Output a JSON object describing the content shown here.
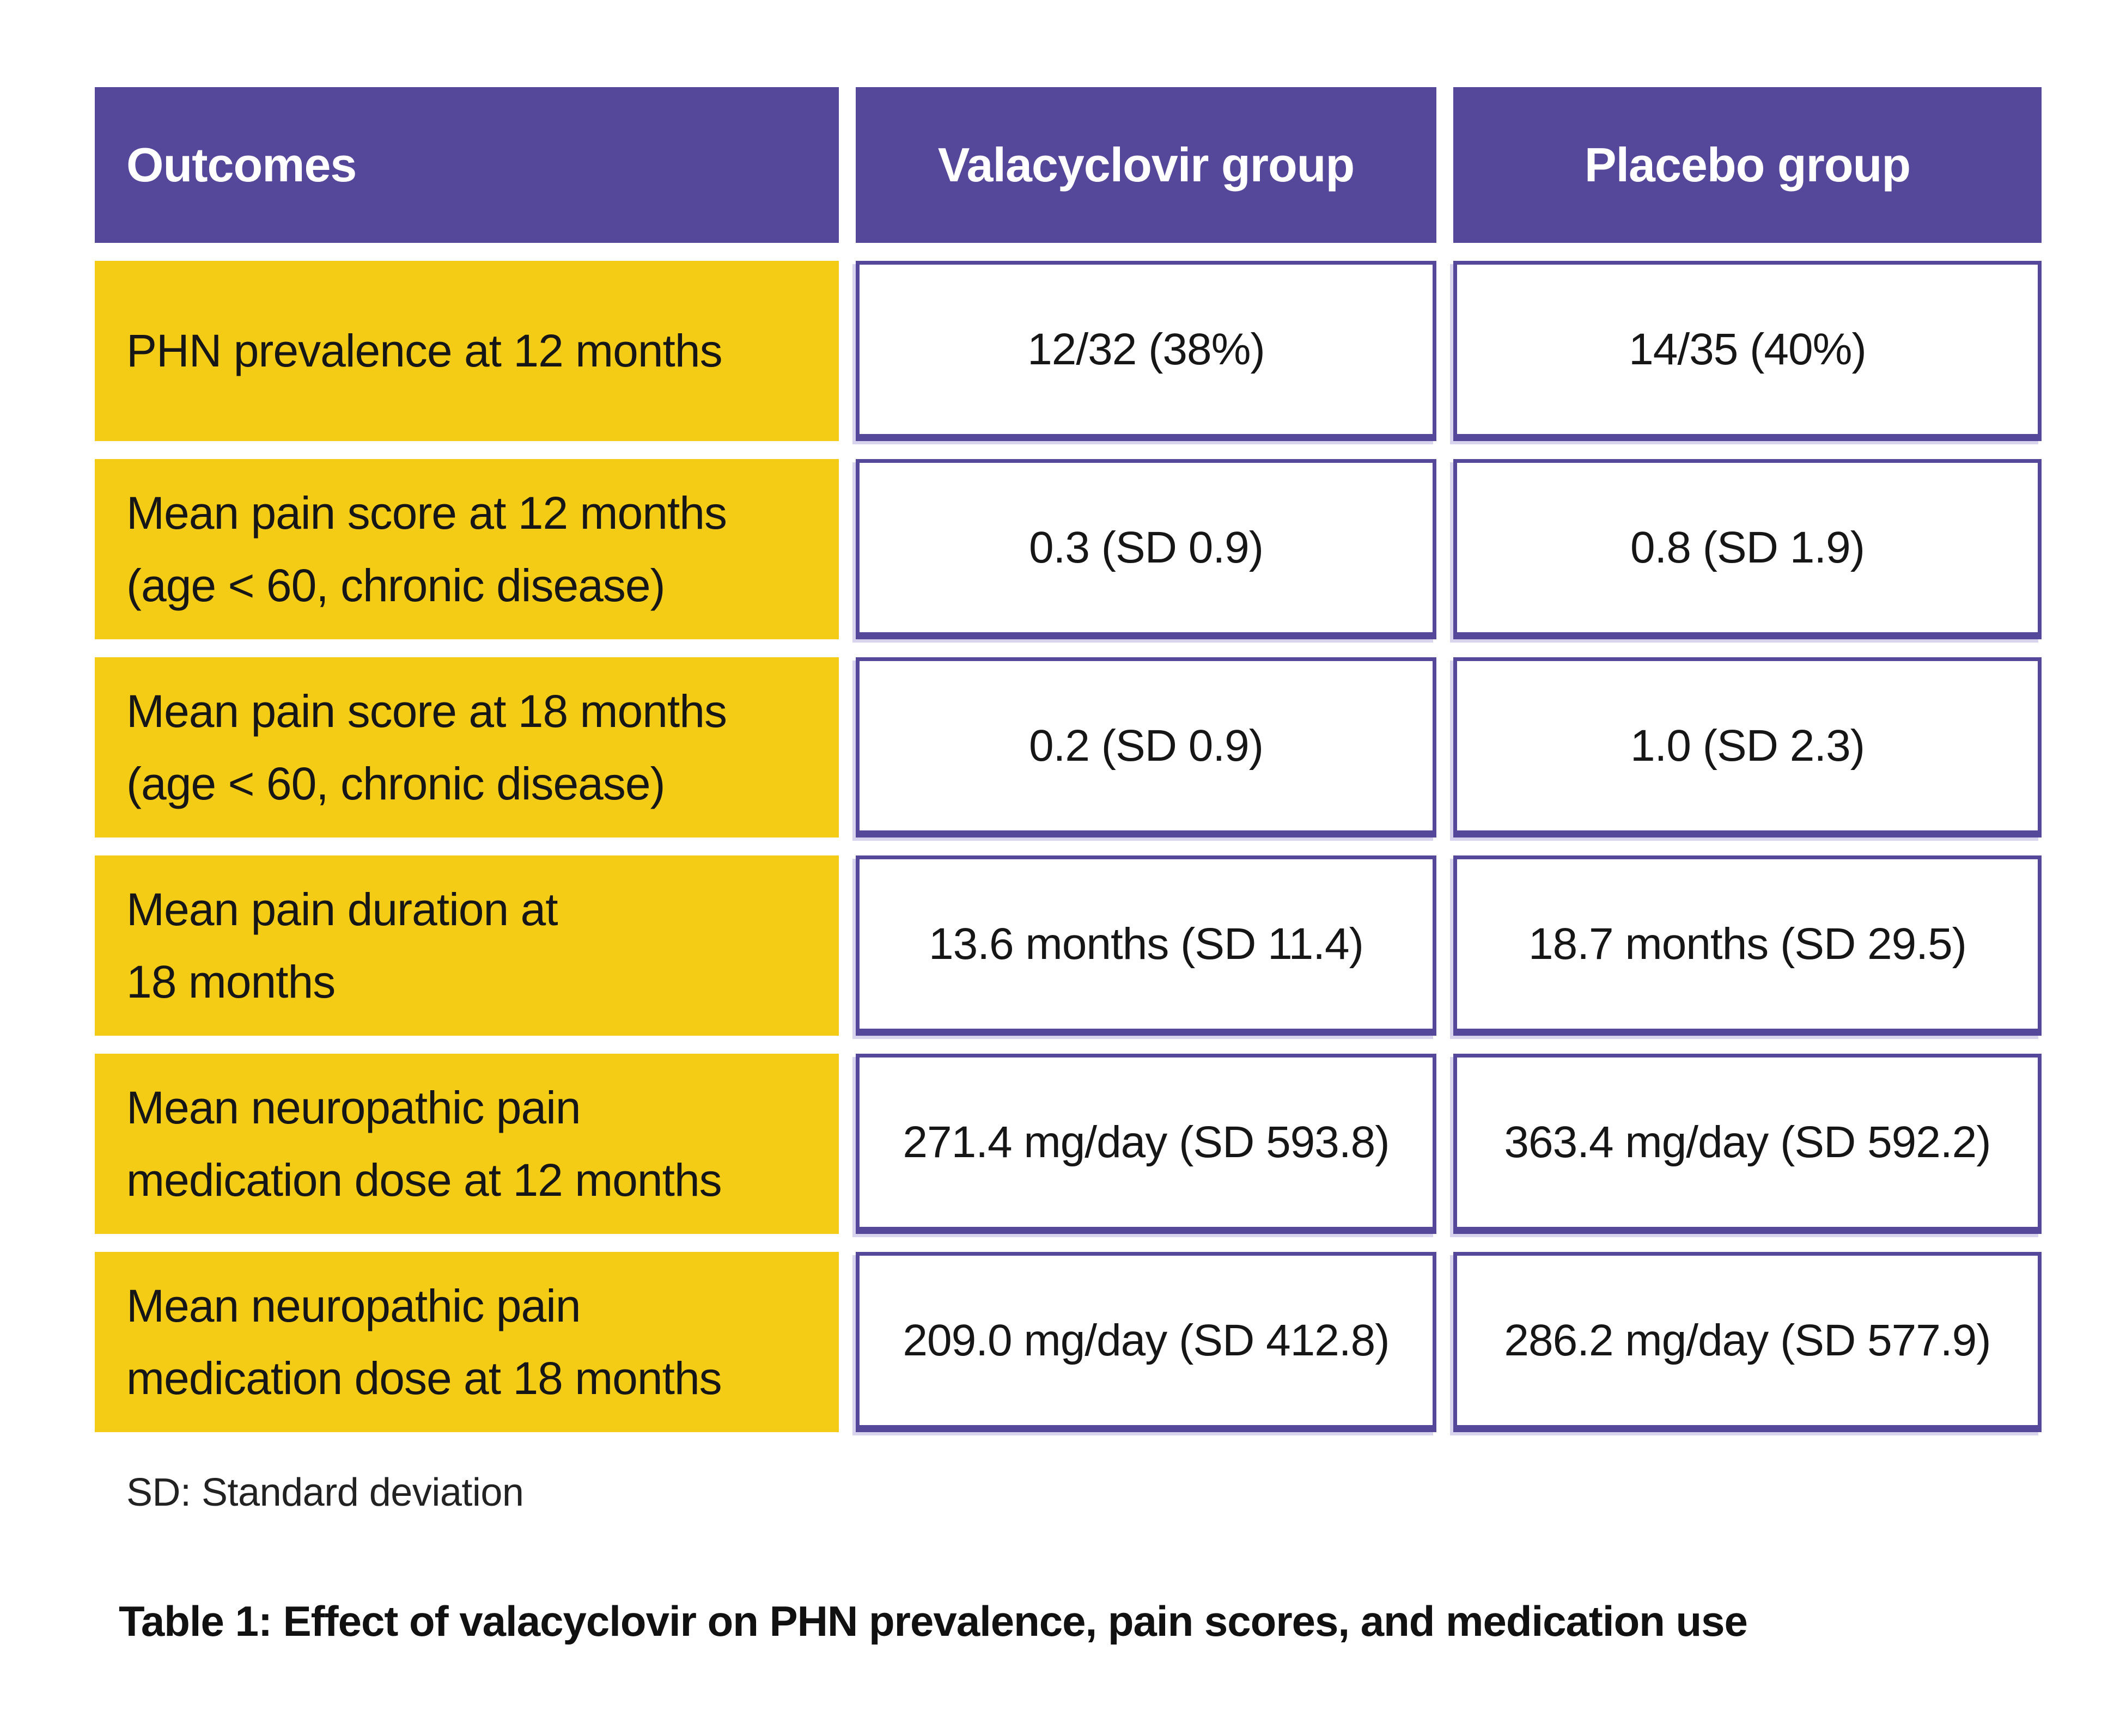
{
  "header": {
    "outcomes": "Outcomes",
    "valacyclovir": "Valacyclovir group",
    "placebo": "Placebo group"
  },
  "rows": [
    {
      "outcome": "PHN prevalence at 12 months",
      "valacyclovir": "12/32 (38%)",
      "placebo": "14/35 (40%)"
    },
    {
      "outcome": "Mean pain score at 12 months\n(age < 60, chronic disease)",
      "valacyclovir": "0.3 (SD 0.9)",
      "placebo": "0.8 (SD 1.9)"
    },
    {
      "outcome": "Mean pain score at 18 months\n(age < 60, chronic disease)",
      "valacyclovir": "0.2 (SD 0.9)",
      "placebo": "1.0 (SD 2.3)"
    },
    {
      "outcome": "Mean pain duration at\n18 months",
      "valacyclovir": "13.6 months (SD 11.4)",
      "placebo": "18.7 months (SD 29.5)"
    },
    {
      "outcome": "Mean neuropathic pain\nmedication dose at 12 months",
      "valacyclovir": "271.4 mg/day (SD 593.8)",
      "placebo": "363.4 mg/day (SD 592.2)"
    },
    {
      "outcome": "Mean neuropathic pain\nmedication dose at 18 months",
      "valacyclovir": "209.0 mg/day (SD 412.8)",
      "placebo": "286.2 mg/day (SD 577.9)"
    }
  ],
  "footnote": "SD: Standard deviation",
  "caption": "Table 1: Effect of valacyclovir on PHN prevalence, pain scores, and medication use",
  "colors": {
    "header_purple": "#55489B",
    "label_yellow": "#F4CC16",
    "cell_border_purple": "#55489B",
    "text_dark": "#161616",
    "header_text": "#FFFFFF"
  }
}
